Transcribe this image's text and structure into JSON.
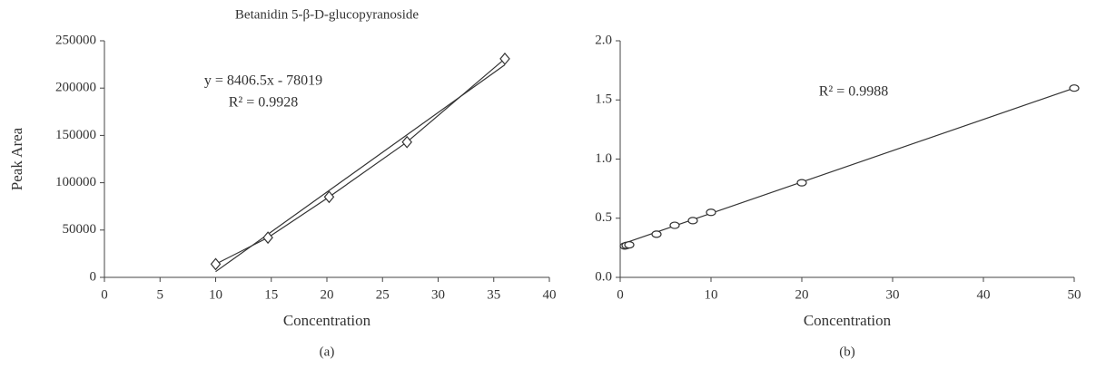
{
  "chart_data": [
    {
      "type": "line",
      "title": "Betanidin 5-β-D-glucopyranoside",
      "x_label": "Concentration",
      "y_label": "Peak Area",
      "caption": "(a)",
      "annotations": [
        "y = 8406.5x - 78019",
        "R² = 0.9928"
      ],
      "x": [
        10,
        14.7,
        20.2,
        27.2,
        36
      ],
      "values": [
        14000,
        42000,
        85000,
        143000,
        231000
      ],
      "trendline": {
        "x": [
          10,
          36
        ],
        "values": [
          6046,
          224615
        ]
      },
      "marker": "diamond",
      "color": "#333",
      "xlim": [
        0,
        40
      ],
      "xticks": [
        0,
        5,
        10,
        15,
        20,
        25,
        30,
        35,
        40
      ],
      "ylim": [
        0,
        250000
      ],
      "yticks": [
        0,
        50000,
        100000,
        150000,
        200000,
        250000
      ]
    },
    {
      "type": "scatter",
      "x_label": "Concentration",
      "caption": "(b)",
      "annotations": [
        "R² = 0.9988"
      ],
      "x": [
        0.5,
        0.7,
        1,
        4,
        6,
        8,
        10,
        20,
        50
      ],
      "values": [
        0.265,
        0.27,
        0.275,
        0.365,
        0.44,
        0.48,
        0.55,
        0.8,
        1.6
      ],
      "trendline": {
        "x": [
          0.5,
          50
        ],
        "values": [
          0.29,
          1.6
        ]
      },
      "marker": "ellipse",
      "color": "#333",
      "xlim": [
        0,
        50
      ],
      "xticks": [
        0,
        10,
        20,
        30,
        40,
        50
      ],
      "ylim": [
        0,
        2.0
      ],
      "yticks": [
        {
          "value": 0,
          "label": "0.0"
        },
        {
          "value": 0.5,
          "label": "0.5"
        },
        {
          "value": 1,
          "label": "1.0"
        },
        {
          "value": 1.5,
          "label": "1.5"
        },
        {
          "value": 2,
          "label": "2.0"
        }
      ]
    }
  ]
}
